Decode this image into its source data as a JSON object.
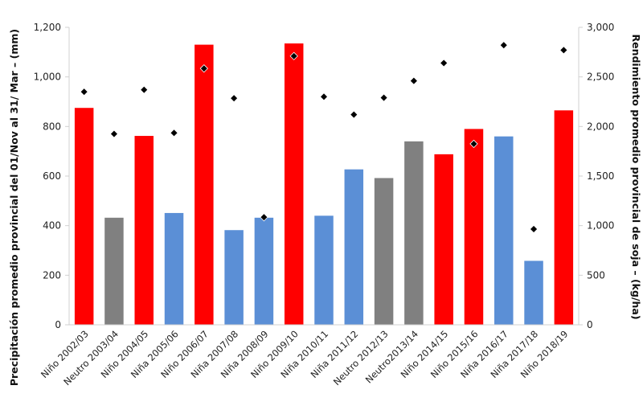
{
  "chart_data": {
    "type": "bar",
    "categories": [
      "Niño 2002/03",
      "Neutro 2003/04",
      "Niño 2004/05",
      "Niña 2005/06",
      "Niño 2006/07",
      "Niña 2007/08",
      "Niña 2008/09",
      "Niño 2009/10",
      "Niña 2010/11",
      "Niña 2011/12",
      "Neutro 2012/13",
      "Neutro2013/14",
      "Niño 2014/15",
      "Niño 2015/16",
      "Niña 2016/17",
      "Niña 2017/18",
      "Niño 2018/19"
    ],
    "series": [
      {
        "type": "bar",
        "axis": "left",
        "values": [
          875,
          432,
          762,
          451,
          1130,
          382,
          432,
          1135,
          440,
          627,
          592,
          740,
          688,
          790,
          760,
          258,
          865
        ]
      },
      {
        "type": "scatter",
        "axis": "right",
        "marker": "diamond",
        "values": [
          2350,
          1925,
          2370,
          1935,
          2585,
          2285,
          1085,
          2710,
          2300,
          2120,
          2290,
          2460,
          2640,
          1825,
          2820,
          965,
          2770
        ]
      }
    ],
    "bar_phase": [
      "Niño",
      "Neutro",
      "Niño",
      "Niña",
      "Niño",
      "Niña",
      "Niña",
      "Niño",
      "Niña",
      "Niña",
      "Neutro",
      "Neutro",
      "Niño",
      "Niño",
      "Niña",
      "Niña",
      "Niño"
    ],
    "colors": {
      "Niño": "#ff0000",
      "Neutro": "#808080",
      "Niña": "#5b8fd6",
      "marker": "#000000",
      "marker_edge": "#ffffff"
    },
    "ylabel": "Precipitación promedio provincial del 01/Nov al 31/ Mar – (mm)",
    "y2label": "Rendimiento promedio provincial de soja – (kg/ha)",
    "ylim": [
      0,
      1200
    ],
    "yticks": [
      0,
      200,
      400,
      600,
      800,
      1000,
      1200
    ],
    "yticklabels": [
      "0",
      "200",
      "400",
      "600",
      "800",
      "1,000",
      "1,200"
    ],
    "y2lim": [
      0,
      3000
    ],
    "y2ticks": [
      0,
      500,
      1000,
      1500,
      2000,
      2500,
      3000
    ],
    "y2ticklabels": [
      "0",
      "500",
      "1,000",
      "1,500",
      "2,000",
      "2,500",
      "3,000"
    ],
    "grid": false,
    "legend": "none"
  }
}
